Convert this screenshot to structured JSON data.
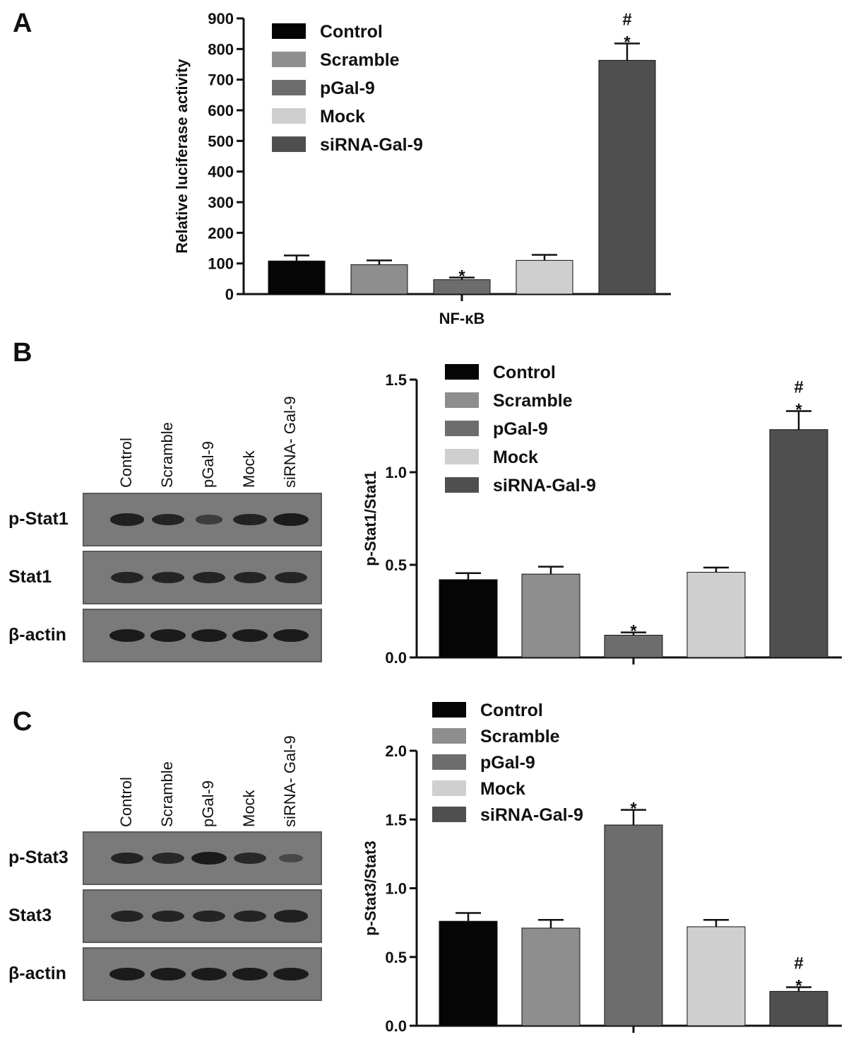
{
  "panels": {
    "a": {
      "letter": "A"
    },
    "b": {
      "letter": "B"
    },
    "c": {
      "letter": "C"
    }
  },
  "colors": {
    "Control": "#050505",
    "Scramble": "#8e8e8e",
    "pGal-9": "#6d6d6d",
    "Mock": "#cfcfcf",
    "siRNA-Gal-9": "#4f4f4f"
  },
  "chart_data": [
    {
      "id": "a",
      "type": "bar",
      "title": "",
      "xlabel": "NF-κB",
      "ylabel": "Relative luciferase activity",
      "ylim": [
        0,
        900
      ],
      "yticks": [
        0,
        100,
        200,
        300,
        400,
        500,
        600,
        700,
        800,
        900
      ],
      "ytick_labels": [
        "0",
        "100",
        "200",
        "300",
        "400",
        "500",
        "600",
        "700",
        "800",
        "900"
      ],
      "legend_position": "top-left",
      "series": [
        {
          "name": "Control",
          "value": 108,
          "error": 18,
          "annotation": ""
        },
        {
          "name": "Scramble",
          "value": 96,
          "error": 14,
          "annotation": ""
        },
        {
          "name": "pGal-9",
          "value": 47,
          "error": 7,
          "annotation": "*"
        },
        {
          "name": "Mock",
          "value": 110,
          "error": 18,
          "annotation": ""
        },
        {
          "name": "siRNA-Gal-9",
          "value": 763,
          "error": 55,
          "annotation": "#*"
        }
      ]
    },
    {
      "id": "b",
      "type": "bar",
      "title": "",
      "xlabel": "",
      "ylabel": "p-Stat1/Stat1",
      "ylim": [
        0,
        1.5
      ],
      "yticks": [
        0,
        0.5,
        1.0,
        1.5
      ],
      "ytick_labels": [
        "0.0",
        "0.5",
        "1.0",
        "1.5"
      ],
      "legend_position": "top-left",
      "series": [
        {
          "name": "Control",
          "value": 0.42,
          "error": 0.035,
          "annotation": ""
        },
        {
          "name": "Scramble",
          "value": 0.45,
          "error": 0.04,
          "annotation": ""
        },
        {
          "name": "pGal-9",
          "value": 0.12,
          "error": 0.015,
          "annotation": "*"
        },
        {
          "name": "Mock",
          "value": 0.46,
          "error": 0.025,
          "annotation": ""
        },
        {
          "name": "siRNA-Gal-9",
          "value": 1.23,
          "error": 0.1,
          "annotation": "#*"
        }
      ]
    },
    {
      "id": "c",
      "type": "bar",
      "title": "",
      "xlabel": "",
      "ylabel": "p-Stat3/Stat3",
      "ylim": [
        0,
        2.0
      ],
      "yticks": [
        0,
        0.5,
        1.0,
        1.5,
        2.0
      ],
      "ytick_labels": [
        "0.0",
        "0.5",
        "1.0",
        "1.5",
        "2.0"
      ],
      "legend_position": "top-left",
      "series": [
        {
          "name": "Control",
          "value": 0.76,
          "error": 0.06,
          "annotation": ""
        },
        {
          "name": "Scramble",
          "value": 0.71,
          "error": 0.06,
          "annotation": ""
        },
        {
          "name": "pGal-9",
          "value": 1.46,
          "error": 0.11,
          "annotation": "*"
        },
        {
          "name": "Mock",
          "value": 0.72,
          "error": 0.05,
          "annotation": ""
        },
        {
          "name": "siRNA-Gal-9",
          "value": 0.25,
          "error": 0.03,
          "annotation": "#*"
        }
      ]
    }
  ],
  "blots": {
    "b": {
      "lanes": [
        "Control",
        "Scramble",
        "pGal-9",
        "Mock",
        "siRNA- Gal-9"
      ],
      "rows": [
        {
          "label": "p-Stat1",
          "intensity": [
            0.9,
            0.85,
            0.45,
            0.88,
            1.0
          ]
        },
        {
          "label": "Stat1",
          "intensity": [
            0.85,
            0.85,
            0.85,
            0.85,
            0.85
          ]
        },
        {
          "label": "β-actin",
          "intensity": [
            1.0,
            1.0,
            1.0,
            1.0,
            1.0
          ]
        }
      ]
    },
    "c": {
      "lanes": [
        "Control",
        "Scramble",
        "pGal-9",
        "Mock",
        "siRNA- Gal-9"
      ],
      "rows": [
        {
          "label": "p-Stat3",
          "intensity": [
            0.85,
            0.8,
            1.0,
            0.8,
            0.3
          ]
        },
        {
          "label": "Stat3",
          "intensity": [
            0.85,
            0.85,
            0.85,
            0.85,
            0.9
          ]
        },
        {
          "label": "β-actin",
          "intensity": [
            1.0,
            1.0,
            1.0,
            1.0,
            1.0
          ]
        }
      ]
    }
  }
}
